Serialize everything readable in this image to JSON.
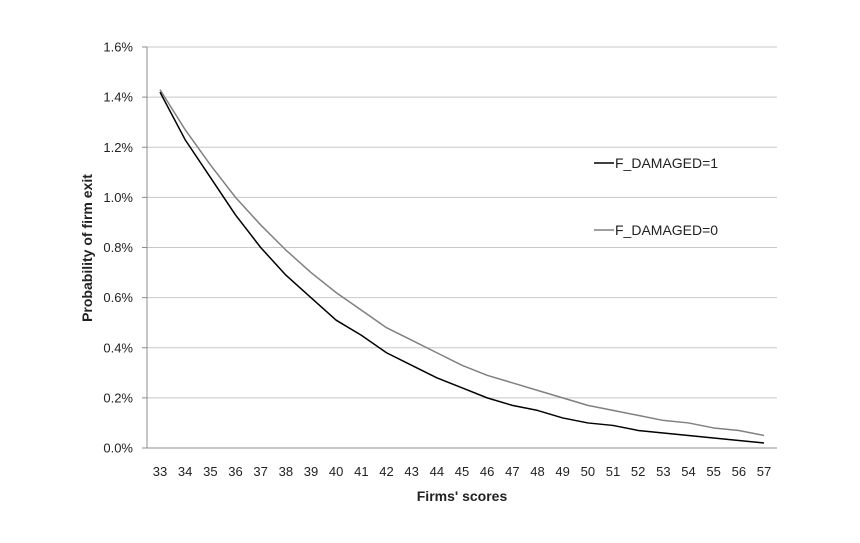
{
  "chart_data": {
    "type": "line",
    "xlabel": "Firms' scores",
    "ylabel": "Probability of firm exit",
    "x": [
      33,
      34,
      35,
      36,
      37,
      38,
      39,
      40,
      41,
      42,
      43,
      44,
      45,
      46,
      47,
      48,
      49,
      50,
      51,
      52,
      53,
      54,
      55,
      56,
      57
    ],
    "xticks": [
      "33",
      "34",
      "35",
      "36",
      "37",
      "38",
      "39",
      "40",
      "41",
      "42",
      "43",
      "44",
      "45",
      "46",
      "47",
      "48",
      "49",
      "50",
      "51",
      "52",
      "53",
      "54",
      "55",
      "56",
      "57"
    ],
    "ylim": [
      0,
      1.6
    ],
    "yticks": [
      0,
      0.2,
      0.4,
      0.6,
      0.8,
      1.0,
      1.2,
      1.4,
      1.6
    ],
    "ytick_labels": [
      "0.0%",
      "0.2%",
      "0.4%",
      "0.6%",
      "0.8%",
      "1.0%",
      "1.2%",
      "1.4%",
      "1.6%"
    ],
    "y_unit": "%",
    "grid": "horizontal",
    "legend_position": "right",
    "series": [
      {
        "name": "F_DAMAGED=1",
        "color": "#000000",
        "values": [
          1.42,
          1.23,
          1.08,
          0.93,
          0.8,
          0.69,
          0.6,
          0.51,
          0.45,
          0.38,
          0.33,
          0.28,
          0.24,
          0.2,
          0.17,
          0.15,
          0.12,
          0.1,
          0.09,
          0.07,
          0.06,
          0.05,
          0.04,
          0.03,
          0.02
        ]
      },
      {
        "name": "F_DAMAGED=0",
        "color": "#808080",
        "values": [
          1.43,
          1.27,
          1.13,
          1.0,
          0.89,
          0.79,
          0.7,
          0.62,
          0.55,
          0.48,
          0.43,
          0.38,
          0.33,
          0.29,
          0.26,
          0.23,
          0.2,
          0.17,
          0.15,
          0.13,
          0.11,
          0.1,
          0.08,
          0.07,
          0.05
        ]
      }
    ]
  }
}
